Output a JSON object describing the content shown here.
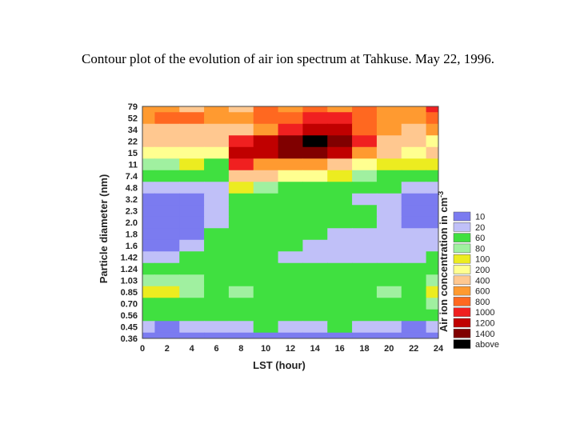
{
  "slide_title": "Contour plot of the evolution of air ion spectrum at Tahkuse. May 22, 1996.",
  "chart_data": {
    "type": "heatmap",
    "title": "",
    "xlabel": "LST  (hour)",
    "ylabel": "Particle diameter (nm)",
    "colorbar_label": "Air ion concentration in cm",
    "colorbar_label_sup": "-3",
    "xlim": [
      0,
      24
    ],
    "x_ticks": [
      "0",
      "2",
      "4",
      "6",
      "8",
      "10",
      "12",
      "14",
      "16",
      "18",
      "20",
      "22",
      "24"
    ],
    "y_ticks": [
      "79",
      "52",
      "34",
      "22",
      "15",
      "11",
      "7.4",
      "4.8",
      "3.2",
      "2.3",
      "2.0",
      "1.8",
      "1.6",
      "1.42",
      "1.24",
      "1.03",
      "0.85",
      "0.70",
      "0.56",
      "0.45",
      "0.36"
    ],
    "hours": [
      0,
      2,
      4,
      6,
      8,
      10,
      12,
      14,
      16,
      18,
      20,
      22,
      24
    ],
    "levels": [
      {
        "label": "10",
        "color": "#7b7bf0"
      },
      {
        "label": "20",
        "color": "#c0c0f8"
      },
      {
        "label": "60",
        "color": "#40e040"
      },
      {
        "label": "80",
        "color": "#a0f0a0"
      },
      {
        "label": "100",
        "color": "#ecec20"
      },
      {
        "label": "200",
        "color": "#ffff90"
      },
      {
        "label": "400",
        "color": "#ffc890"
      },
      {
        "label": "600",
        "color": "#ff9a30"
      },
      {
        "label": "800",
        "color": "#ff6820"
      },
      {
        "label": "1000",
        "color": "#f02020"
      },
      {
        "label": "1200",
        "color": "#c00000"
      },
      {
        "label": "1400",
        "color": "#800000"
      },
      {
        "label": "above",
        "color": "#000000"
      }
    ],
    "grid_level_index": [
      [
        7,
        7,
        6,
        7,
        6,
        8,
        7,
        8,
        7,
        8,
        7,
        7,
        9
      ],
      [
        7,
        8,
        8,
        7,
        7,
        8,
        8,
        9,
        9,
        8,
        7,
        7,
        8
      ],
      [
        6,
        6,
        6,
        6,
        6,
        7,
        9,
        10,
        10,
        8,
        7,
        6,
        7
      ],
      [
        6,
        6,
        6,
        6,
        9,
        10,
        11,
        12,
        11,
        9,
        6,
        6,
        5
      ],
      [
        5,
        5,
        5,
        5,
        10,
        10,
        11,
        11,
        10,
        7,
        6,
        5,
        6
      ],
      [
        3,
        3,
        4,
        2,
        9,
        7,
        7,
        7,
        6,
        5,
        4,
        4,
        4
      ],
      [
        2,
        2,
        2,
        2,
        6,
        6,
        5,
        5,
        4,
        3,
        2,
        2,
        2
      ],
      [
        1,
        1,
        1,
        1,
        4,
        3,
        2,
        2,
        2,
        2,
        2,
        1,
        1
      ],
      [
        0,
        0,
        0,
        1,
        2,
        2,
        2,
        2,
        2,
        1,
        1,
        0,
        0
      ],
      [
        0,
        0,
        0,
        1,
        2,
        2,
        2,
        2,
        2,
        2,
        1,
        0,
        0
      ],
      [
        0,
        0,
        0,
        1,
        2,
        2,
        2,
        2,
        2,
        2,
        1,
        0,
        0
      ],
      [
        0,
        0,
        0,
        2,
        2,
        2,
        2,
        2,
        1,
        1,
        1,
        1,
        1
      ],
      [
        0,
        0,
        1,
        2,
        2,
        2,
        2,
        1,
        1,
        1,
        1,
        1,
        1
      ],
      [
        1,
        1,
        2,
        2,
        2,
        2,
        1,
        1,
        1,
        1,
        1,
        1,
        2
      ],
      [
        2,
        2,
        2,
        2,
        2,
        2,
        2,
        2,
        2,
        2,
        2,
        2,
        2
      ],
      [
        3,
        3,
        3,
        2,
        2,
        2,
        2,
        2,
        2,
        2,
        2,
        2,
        3
      ],
      [
        4,
        4,
        3,
        2,
        3,
        2,
        2,
        2,
        2,
        2,
        3,
        2,
        4
      ],
      [
        2,
        2,
        2,
        2,
        2,
        2,
        2,
        2,
        2,
        2,
        2,
        2,
        3
      ],
      [
        2,
        2,
        2,
        2,
        2,
        2,
        2,
        2,
        2,
        2,
        2,
        2,
        2
      ],
      [
        1,
        0,
        1,
        1,
        1,
        2,
        1,
        1,
        2,
        1,
        1,
        0,
        1
      ],
      [
        0,
        0,
        0,
        0,
        0,
        0,
        0,
        0,
        0,
        0,
        0,
        0,
        0
      ]
    ]
  }
}
